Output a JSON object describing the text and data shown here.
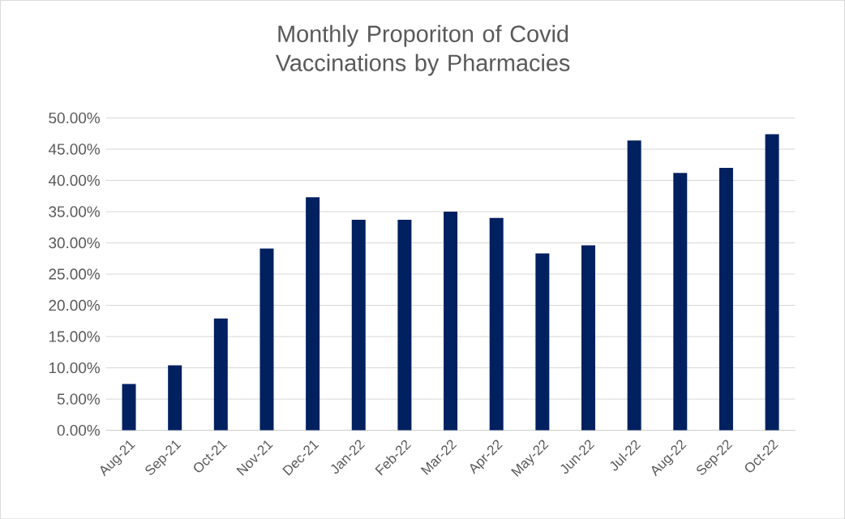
{
  "chart_data": {
    "type": "bar",
    "title": "Monthly Proporiton of Covid Vaccinations by Pharmacies",
    "categories": [
      "Aug-21",
      "Sep-21",
      "Oct-21",
      "Nov-21",
      "Dec-21",
      "Jan-22",
      "Feb-22",
      "Mar-22",
      "Apr-22",
      "May-22",
      "Jun-22",
      "Jul-22",
      "Aug-22",
      "Sep-22",
      "Oct-22"
    ],
    "values": [
      7.4,
      10.4,
      17.9,
      29.1,
      37.3,
      33.7,
      33.7,
      35.0,
      34.0,
      28.3,
      29.6,
      46.4,
      41.2,
      42.0,
      47.4
    ],
    "color": "#002060",
    "ylim": [
      0,
      50
    ],
    "yticks": [
      {
        "value": 0,
        "label": "0.00%"
      },
      {
        "value": 5,
        "label": "5.00%"
      },
      {
        "value": 10,
        "label": "10.00%"
      },
      {
        "value": 15,
        "label": "15.00%"
      },
      {
        "value": 20,
        "label": "20.00%"
      },
      {
        "value": 25,
        "label": "25.00%"
      },
      {
        "value": 30,
        "label": "30.00%"
      },
      {
        "value": 35,
        "label": "35.00%"
      },
      {
        "value": 40,
        "label": "40.00%"
      },
      {
        "value": 45,
        "label": "45.00%"
      },
      {
        "value": 50,
        "label": "50.00%"
      }
    ],
    "grid": "y"
  }
}
